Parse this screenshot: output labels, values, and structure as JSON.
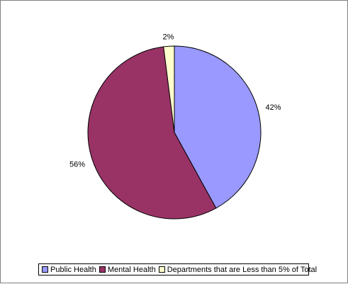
{
  "chart_data": {
    "type": "pie",
    "categories": [
      "Public Health",
      "Mental Health",
      "Departments that are Less than 5% of Total"
    ],
    "values": [
      42,
      56,
      2
    ],
    "value_labels": [
      "42%",
      "56%",
      "2%"
    ],
    "colors": [
      "#9999ff",
      "#993366",
      "#ffffcc"
    ],
    "title": "",
    "legend_position": "bottom"
  }
}
